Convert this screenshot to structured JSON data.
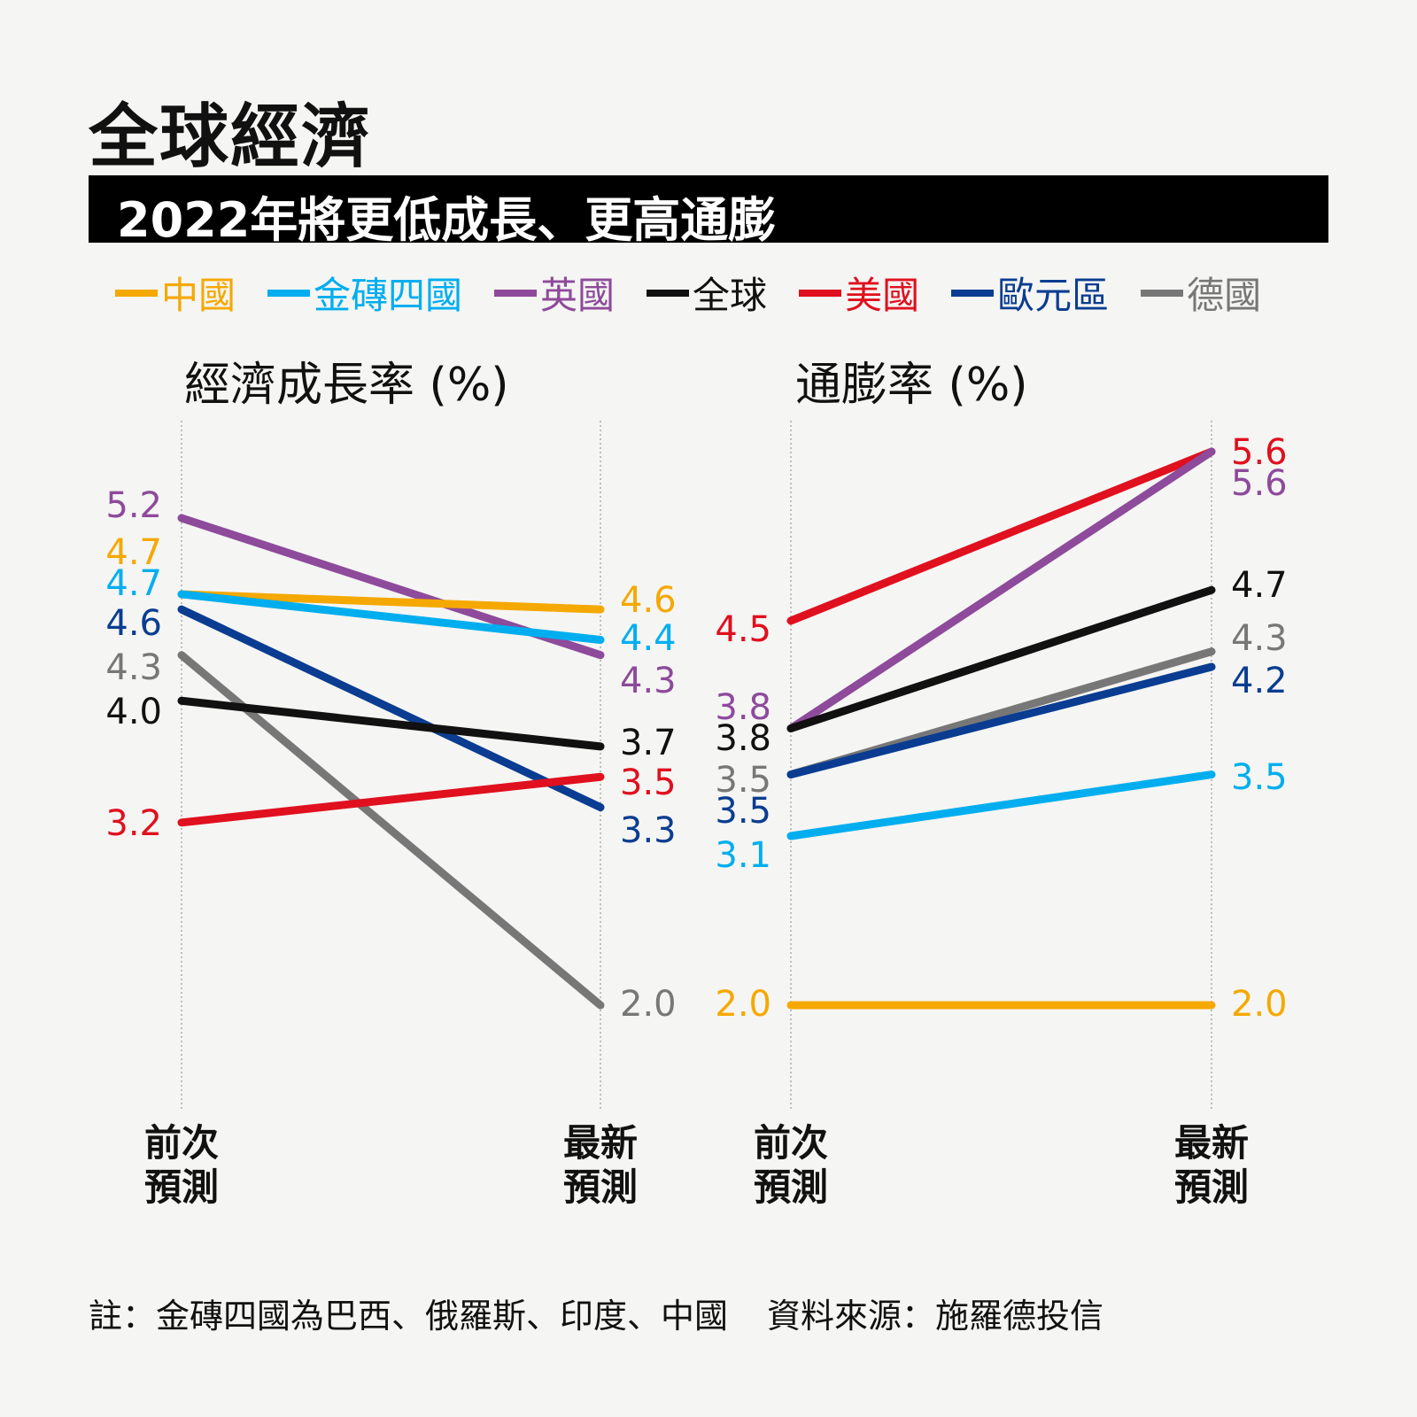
{
  "title": "全球經濟",
  "subtitle": "2022年將更低成長、更高通膨",
  "legend": [
    {
      "name": "中國",
      "color": "#f5a800"
    },
    {
      "name": "金磚四國",
      "color": "#00aeef"
    },
    {
      "name": "英國",
      "color": "#8e4a9b"
    },
    {
      "name": "全球",
      "color": "#111111"
    },
    {
      "name": "美國",
      "color": "#e0101e"
    },
    {
      "name": "歐元區",
      "color": "#0a3d91"
    },
    {
      "name": "德國",
      "color": "#777777"
    }
  ],
  "chart_data": [
    {
      "type": "slope",
      "title": "經濟成長率 (%)",
      "categories": [
        "前次預測",
        "最新預測"
      ],
      "series": [
        {
          "name": "英國",
          "values": [
            5.2,
            4.3
          ]
        },
        {
          "name": "中國",
          "values": [
            4.7,
            4.6
          ]
        },
        {
          "name": "金磚四國",
          "values": [
            4.7,
            4.4
          ]
        },
        {
          "name": "歐元區",
          "values": [
            4.6,
            3.3
          ]
        },
        {
          "name": "德國",
          "values": [
            4.3,
            2.0
          ]
        },
        {
          "name": "全球",
          "values": [
            4.0,
            3.7
          ]
        },
        {
          "name": "美國",
          "values": [
            3.2,
            3.5
          ]
        }
      ]
    },
    {
      "type": "slope",
      "title": "通膨率 (%)",
      "categories": [
        "前次預測",
        "最新預測"
      ],
      "series": [
        {
          "name": "美國",
          "values": [
            4.5,
            5.6
          ]
        },
        {
          "name": "英國",
          "values": [
            3.8,
            5.6
          ]
        },
        {
          "name": "全球",
          "values": [
            3.8,
            4.7
          ]
        },
        {
          "name": "德國",
          "values": [
            3.5,
            4.3
          ]
        },
        {
          "name": "歐元區",
          "values": [
            3.5,
            4.2
          ]
        },
        {
          "name": "金磚四國",
          "values": [
            3.1,
            3.5
          ]
        },
        {
          "name": "中國",
          "values": [
            2.0,
            2.0
          ]
        }
      ]
    }
  ],
  "axis_labels": [
    [
      "前次",
      "預測"
    ],
    [
      "最新",
      "預測"
    ]
  ],
  "note": "註：金磚四國為巴西、俄羅斯、印度、中國",
  "source": "資料來源：施羅德投信"
}
